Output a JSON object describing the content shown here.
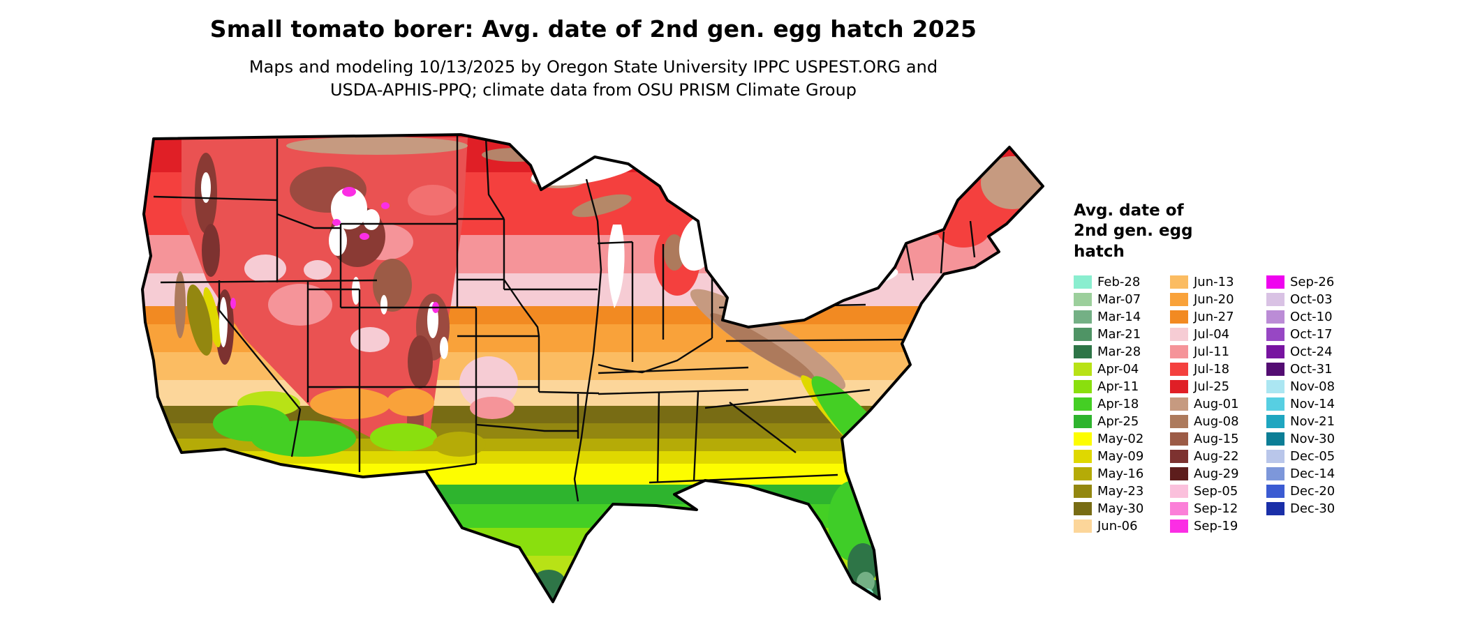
{
  "header": {
    "title": "Small tomato borer: Avg. date of 2nd gen. egg hatch 2025",
    "subtitle_line1": "Maps and modeling 10/13/2025 by Oregon State University IPPC USPEST.ORG and",
    "subtitle_line2": "USDA-APHIS-PPQ; climate data from OSU PRISM Climate Group"
  },
  "legend": {
    "title": "Avg. date of\n2nd gen. egg\nhatch",
    "entries": [
      {
        "label": "Feb-28",
        "color": "#8aeecf"
      },
      {
        "label": "Mar-07",
        "color": "#9ccf9c"
      },
      {
        "label": "Mar-14",
        "color": "#74b085"
      },
      {
        "label": "Mar-21",
        "color": "#4f9465"
      },
      {
        "label": "Mar-28",
        "color": "#2e7547"
      },
      {
        "label": "Apr-04",
        "color": "#b8e216"
      },
      {
        "label": "Apr-11",
        "color": "#8adf0e"
      },
      {
        "label": "Apr-18",
        "color": "#44cf24"
      },
      {
        "label": "Apr-25",
        "color": "#2eb42e"
      },
      {
        "label": "May-02",
        "color": "#fdfd00"
      },
      {
        "label": "May-09",
        "color": "#dfd800"
      },
      {
        "label": "May-16",
        "color": "#b5ab07"
      },
      {
        "label": "May-23",
        "color": "#938710"
      },
      {
        "label": "May-30",
        "color": "#786c14"
      },
      {
        "label": "Jun-06",
        "color": "#fcd69a"
      },
      {
        "label": "Jun-13",
        "color": "#fbbc62"
      },
      {
        "label": "Jun-20",
        "color": "#f9a23a"
      },
      {
        "label": "Jun-27",
        "color": "#f28a22"
      },
      {
        "label": "Jul-04",
        "color": "#f6ccd4"
      },
      {
        "label": "Jul-11",
        "color": "#f59499"
      },
      {
        "label": "Jul-18",
        "color": "#f4403e"
      },
      {
        "label": "Jul-25",
        "color": "#e01f26"
      },
      {
        "label": "Aug-01",
        "color": "#c69a80"
      },
      {
        "label": "Aug-08",
        "color": "#ad7a5c"
      },
      {
        "label": "Aug-15",
        "color": "#9c5b46"
      },
      {
        "label": "Aug-22",
        "color": "#7d3230"
      },
      {
        "label": "Aug-29",
        "color": "#5d1d1c"
      },
      {
        "label": "Sep-05",
        "color": "#fbc0dc"
      },
      {
        "label": "Sep-12",
        "color": "#fb7fd8"
      },
      {
        "label": "Sep-19",
        "color": "#fb2ee4"
      },
      {
        "label": "Sep-26",
        "color": "#ef04ef"
      },
      {
        "label": "Oct-03",
        "color": "#d9c2e4"
      },
      {
        "label": "Oct-10",
        "color": "#bb8cd6"
      },
      {
        "label": "Oct-17",
        "color": "#9747c4"
      },
      {
        "label": "Oct-24",
        "color": "#7714a0"
      },
      {
        "label": "Oct-31",
        "color": "#530d72"
      },
      {
        "label": "Nov-08",
        "color": "#abe6f2"
      },
      {
        "label": "Nov-14",
        "color": "#57cfe2"
      },
      {
        "label": "Nov-21",
        "color": "#1fa6c0"
      },
      {
        "label": "Nov-30",
        "color": "#0c7e96"
      },
      {
        "label": "Dec-05",
        "color": "#b9c6ea"
      },
      {
        "label": "Dec-14",
        "color": "#7d97da"
      },
      {
        "label": "Dec-20",
        "color": "#3b5bd2"
      },
      {
        "label": "Dec-30",
        "color": "#1a2fa8"
      }
    ]
  }
}
